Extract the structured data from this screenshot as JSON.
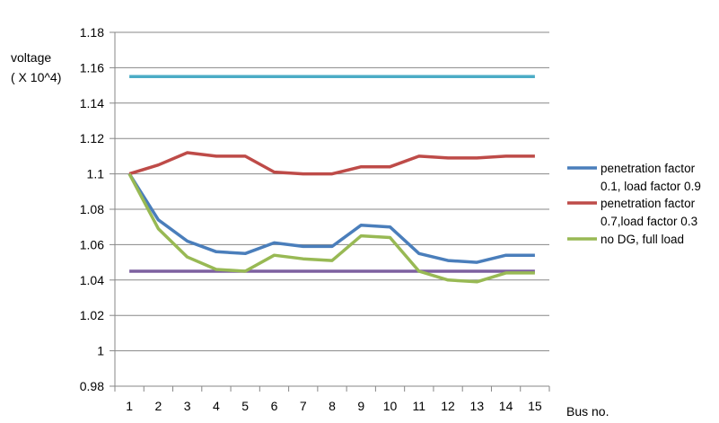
{
  "chart_data": {
    "type": "line",
    "ylabel": [
      "voltage",
      "( X 10^4)"
    ],
    "xlabel": "Bus no.",
    "x": [
      1,
      2,
      3,
      4,
      5,
      6,
      7,
      8,
      9,
      10,
      11,
      12,
      13,
      14,
      15
    ],
    "ylim": [
      0.98,
      1.18
    ],
    "yticks": [
      "0.98",
      "1",
      "1.02",
      "1.04",
      "1.06",
      "1.08",
      "1.1",
      "1.12",
      "1.14",
      "1.16",
      "1.18"
    ],
    "grid": "horizontal",
    "legend_position": "right",
    "series": [
      {
        "name": "penetration factor 0.1, load factor 0.9",
        "color": "#4a7ebb",
        "values": [
          1.1,
          1.074,
          1.062,
          1.056,
          1.055,
          1.061,
          1.059,
          1.059,
          1.071,
          1.07,
          1.055,
          1.051,
          1.05,
          1.054,
          1.054
        ],
        "legend_lines": [
          "penetration factor",
          "0.1, load factor 0.9"
        ]
      },
      {
        "name": "penetration factor 0.7,load factor 0.3",
        "color": "#be4b48",
        "values": [
          1.1,
          1.105,
          1.112,
          1.11,
          1.11,
          1.101,
          1.1,
          1.1,
          1.104,
          1.104,
          1.11,
          1.109,
          1.109,
          1.11,
          1.11
        ],
        "legend_lines": [
          "penetration factor",
          "0.7,load factor 0.3"
        ]
      },
      {
        "name": "no DG, full load",
        "color": "#98b954",
        "values": [
          1.1,
          1.069,
          1.053,
          1.046,
          1.045,
          1.054,
          1.052,
          1.051,
          1.065,
          1.064,
          1.045,
          1.04,
          1.039,
          1.044,
          1.044
        ],
        "legend_lines": [
          "no DG, full load"
        ]
      },
      {
        "name": "",
        "color": "#4bacc6",
        "values": [
          1.155,
          1.155,
          1.155,
          1.155,
          1.155,
          1.155,
          1.155,
          1.155,
          1.155,
          1.155,
          1.155,
          1.155,
          1.155,
          1.155,
          1.155
        ]
      },
      {
        "name": "",
        "color": "#7d60a0",
        "values": [
          1.045,
          1.045,
          1.045,
          1.045,
          1.045,
          1.045,
          1.045,
          1.045,
          1.045,
          1.045,
          1.045,
          1.045,
          1.045,
          1.045,
          1.045
        ]
      }
    ]
  }
}
